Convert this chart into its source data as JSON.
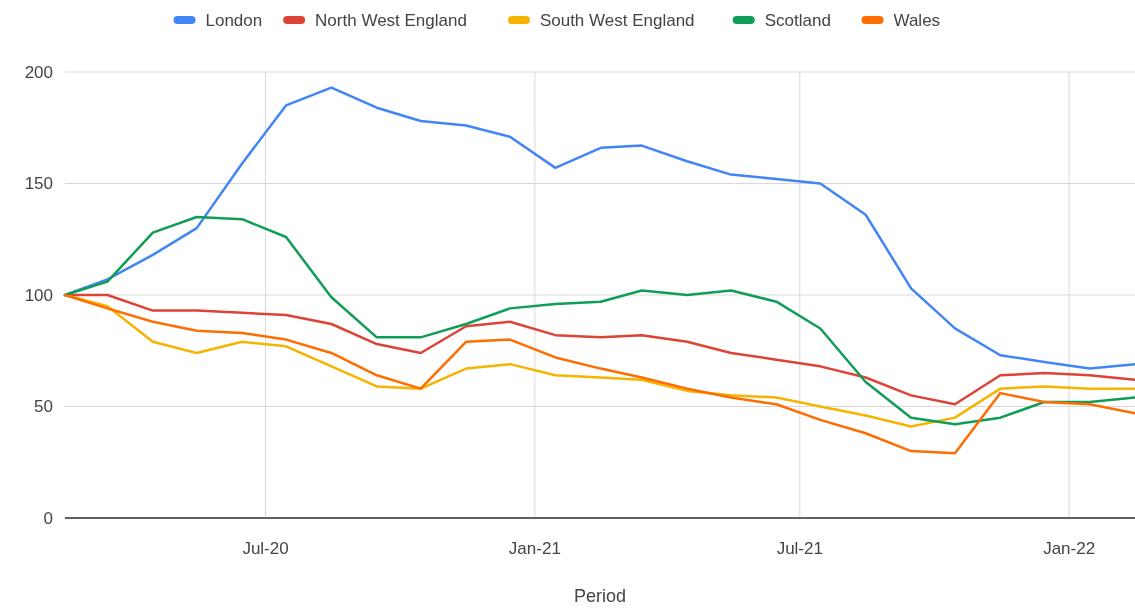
{
  "chart_data": {
    "type": "line",
    "xlabel": "Period",
    "x": [
      "2020-02-15",
      "2020-03-15",
      "2020-04-15",
      "2020-05-15",
      "2020-06-15",
      "2020-07-15",
      "2020-08-15",
      "2020-09-15",
      "2020-10-15",
      "2020-11-15",
      "2020-12-15",
      "2021-01-15",
      "2021-02-15",
      "2021-03-15",
      "2021-04-15",
      "2021-05-15",
      "2021-06-15",
      "2021-07-15",
      "2021-08-15",
      "2021-09-15",
      "2021-10-15",
      "2021-11-15",
      "2021-12-15",
      "2022-01-15",
      "2022-02-15"
    ],
    "series": [
      {
        "name": "London",
        "color": "#4285f4",
        "values": [
          100,
          107,
          118,
          130,
          159,
          185,
          193,
          184,
          178,
          176,
          171,
          157,
          166,
          167,
          160,
          154,
          152,
          150,
          136,
          103,
          85,
          73,
          70,
          67,
          69
        ]
      },
      {
        "name": "North West England",
        "color": "#db4437",
        "values": [
          100,
          100,
          93,
          93,
          92,
          91,
          87,
          78,
          74,
          86,
          88,
          82,
          81,
          82,
          79,
          74,
          71,
          68,
          63,
          55,
          51,
          64,
          65,
          64,
          62
        ]
      },
      {
        "name": "South West England",
        "color": "#f4b400",
        "values": [
          100,
          95,
          79,
          74,
          79,
          77,
          68,
          59,
          58,
          67,
          69,
          64,
          63,
          62,
          57,
          55,
          54,
          50,
          46,
          41,
          45,
          58,
          59,
          58,
          58
        ]
      },
      {
        "name": "Scotland",
        "color": "#0f9d58",
        "values": [
          100,
          106,
          128,
          135,
          134,
          126,
          99,
          81,
          81,
          87,
          94,
          96,
          97,
          102,
          100,
          102,
          97,
          85,
          61,
          45,
          42,
          45,
          52,
          52,
          54
        ]
      },
      {
        "name": "Wales",
        "color": "#ff6d01",
        "values": [
          100,
          94,
          88,
          84,
          83,
          80,
          74,
          64,
          58,
          79,
          80,
          72,
          67,
          63,
          58,
          54,
          51,
          44,
          38,
          30,
          29,
          56,
          52,
          51,
          47
        ]
      }
    ],
    "xlim": [
      "2020-02-15",
      "2022-02-15"
    ],
    "xticks": [
      {
        "value": "2020-07-01",
        "label": "Jul-20"
      },
      {
        "value": "2021-01-01",
        "label": "Jan-21"
      },
      {
        "value": "2021-07-01",
        "label": "Jul-21"
      },
      {
        "value": "2022-01-01",
        "label": "Jan-22"
      }
    ],
    "ylim": [
      0,
      200
    ],
    "yticks": [
      0,
      50,
      100,
      150,
      200
    ],
    "grid": true,
    "legend": "top",
    "marker": "none",
    "line_style": "solid"
  }
}
